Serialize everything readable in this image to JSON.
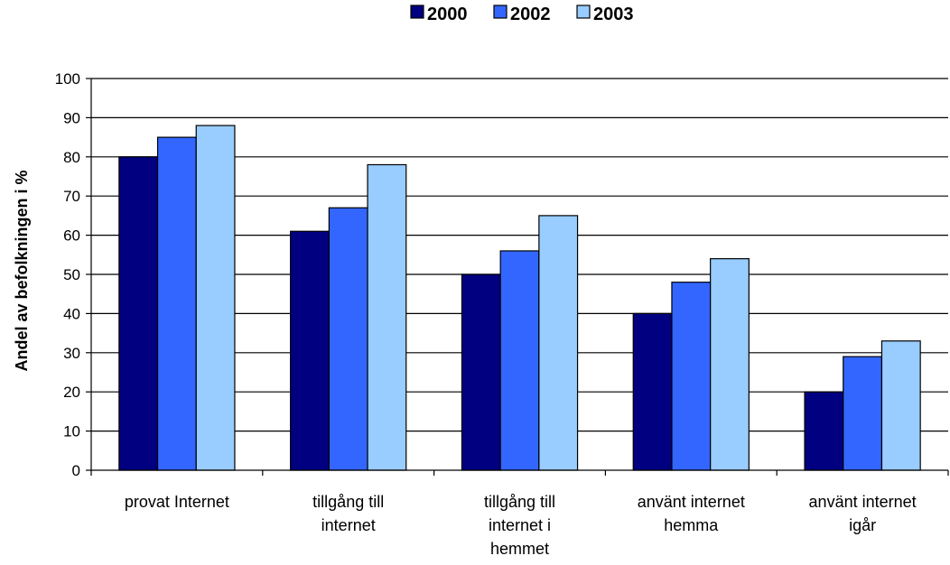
{
  "chart_data": {
    "type": "bar",
    "title": "",
    "xlabel": "",
    "ylabel": "Andel av befolkningen i %",
    "ylim": [
      0,
      100
    ],
    "yticks": [
      0,
      10,
      20,
      30,
      40,
      50,
      60,
      70,
      80,
      90,
      100
    ],
    "grid": true,
    "legend_position": "top",
    "categories": [
      [
        "provat Internet"
      ],
      [
        "tillgång till",
        "internet"
      ],
      [
        "tillgång till",
        "internet i",
        "hemmet"
      ],
      [
        "använt internet",
        "hemma"
      ],
      [
        "använt internet",
        "igår"
      ]
    ],
    "series": [
      {
        "name": "2000",
        "color": "#000080",
        "values": [
          80,
          61,
          50,
          40,
          20
        ]
      },
      {
        "name": "2002",
        "color": "#3366FF",
        "values": [
          85,
          67,
          56,
          48,
          29
        ]
      },
      {
        "name": "2003",
        "color": "#99CCFF",
        "values": [
          88,
          78,
          65,
          54,
          33
        ]
      }
    ]
  }
}
